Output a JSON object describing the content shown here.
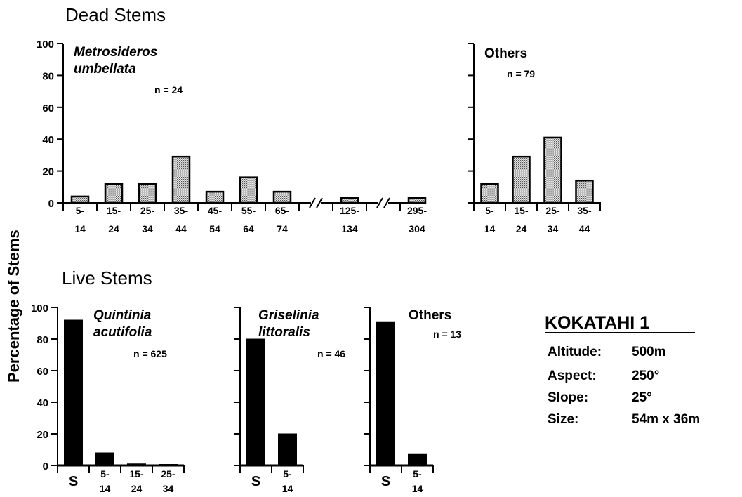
{
  "sections": {
    "dead_title": "Dead Stems",
    "live_title": "Live Stems",
    "ylabel": "Percentage of Stems"
  },
  "site": {
    "name": "KOKATAHI 1",
    "details": [
      {
        "label": "Altitude:",
        "value": "500m"
      },
      {
        "label": "Aspect:",
        "value": "250°"
      },
      {
        "label": "Slope:",
        "value": "25°"
      },
      {
        "label": "Size:",
        "value": "54m x 36m"
      }
    ]
  },
  "colors": {
    "dead_bar": "#d2d2d2",
    "live_bar": "#000000",
    "axis": "#000000"
  },
  "chart_data": [
    {
      "id": "dead-metrosideros",
      "type": "bar",
      "panel": "Dead Stems",
      "species": [
        "Metrosideros",
        "umbellata"
      ],
      "species_italic": true,
      "n_label": "n = 24",
      "categories": [
        [
          "5-",
          "14"
        ],
        [
          "15-",
          "24"
        ],
        [
          "25-",
          "34"
        ],
        [
          "35-",
          "44"
        ],
        [
          "45-",
          "54"
        ],
        [
          "55-",
          "64"
        ],
        [
          "65-",
          "74"
        ],
        [
          "125-",
          "134"
        ],
        [
          "295-",
          "304"
        ]
      ],
      "values": [
        4,
        12,
        12,
        29,
        7,
        16,
        7,
        3,
        3
      ],
      "axis_breaks_after": [
        6,
        7
      ],
      "ylim": [
        0,
        100
      ],
      "yticks": [
        0,
        20,
        40,
        60,
        80,
        100
      ],
      "fill": "stippled"
    },
    {
      "id": "dead-others",
      "type": "bar",
      "panel": "Dead Stems",
      "species": [
        "Others"
      ],
      "species_italic": false,
      "n_label": "n = 79",
      "categories": [
        [
          "5-",
          "14"
        ],
        [
          "15-",
          "24"
        ],
        [
          "25-",
          "34"
        ],
        [
          "35-",
          "44"
        ]
      ],
      "values": [
        12,
        29,
        41,
        14
      ],
      "ylim": [
        0,
        100
      ],
      "fill": "stippled"
    },
    {
      "id": "live-quintinia",
      "type": "bar",
      "panel": "Live Stems",
      "species": [
        "Quintinia",
        "acutifolia"
      ],
      "species_italic": true,
      "n_label": "n = 625",
      "categories": [
        [
          "S"
        ],
        [
          "5-",
          "14"
        ],
        [
          "15-",
          "24"
        ],
        [
          "25-",
          "34"
        ]
      ],
      "values": [
        92,
        8,
        1,
        0.5
      ],
      "ylim": [
        0,
        100
      ],
      "yticks": [
        0,
        20,
        40,
        60,
        80,
        100
      ],
      "fill": "solid"
    },
    {
      "id": "live-griselinia",
      "type": "bar",
      "panel": "Live Stems",
      "species": [
        "Griselinia",
        "littoralis"
      ],
      "species_italic": true,
      "n_label": "n = 46",
      "categories": [
        [
          "S"
        ],
        [
          "5-",
          "14"
        ]
      ],
      "values": [
        80,
        20
      ],
      "ylim": [
        0,
        100
      ],
      "fill": "solid"
    },
    {
      "id": "live-others",
      "type": "bar",
      "panel": "Live Stems",
      "species": [
        "Others"
      ],
      "species_italic": false,
      "n_label": "n = 13",
      "categories": [
        [
          "S"
        ],
        [
          "5-",
          "14"
        ]
      ],
      "values": [
        91,
        7
      ],
      "ylim": [
        0,
        100
      ],
      "fill": "solid"
    }
  ]
}
